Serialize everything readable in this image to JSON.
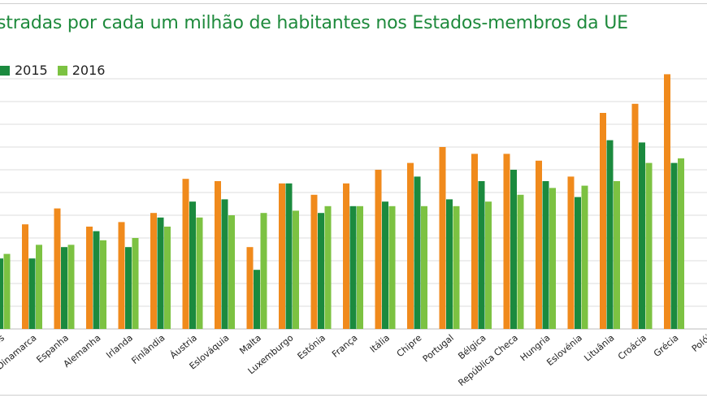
{
  "title": "stradas por cada um milhão de habitantes nos Estados-membros da UE",
  "colors": {
    "2014": "#f08a1c",
    "2015": "#1b8a3e",
    "2016": "#7cc242",
    "title": "#1e8a3c"
  },
  "legend": [
    {
      "label": "2015",
      "color": "#1b8a3e"
    },
    {
      "label": "2016",
      "color": "#7cc242"
    }
  ],
  "chart_data": {
    "type": "bar",
    "title": "stradas por cada um milhão de habitantes nos Estados-membros da UE",
    "xlabel": "",
    "ylabel": "",
    "ylim": [
      0,
      110
    ],
    "grid": true,
    "legend_position": "top-left",
    "categories": [
      "Países Baixos",
      "Dinamarca",
      "Espanha",
      "Alemanha",
      "Irlanda",
      "Finlândia",
      "Áustria",
      "Eslováquia",
      "Malta",
      "Luxemburgo",
      "Estónia",
      "França",
      "Itália",
      "Chipre",
      "Portugal",
      "Bélgica",
      "República Checa",
      "Hungria",
      "Eslovénia",
      "Lituânia",
      "Croácia",
      "Grécia",
      "Polónia"
    ],
    "tick_labels": [
      "xos",
      "Dinamarca",
      "Espanha",
      "Alemanha",
      "Irlanda",
      "Finlândia",
      "Áustria",
      "Eslováquia",
      "Malta",
      "Luxemburgo",
      "Estónia",
      "França",
      "Itália",
      "Chipre",
      "Portugal",
      "Bélgica",
      "República Checa",
      "Hungria",
      "Eslovénia",
      "Lituânia",
      "Croácia",
      "Grécia",
      "Polói"
    ],
    "series": [
      {
        "name": "",
        "values": [
          32,
          46,
          53,
          45,
          47,
          51,
          66,
          65,
          36,
          64,
          59,
          64,
          70,
          73,
          80,
          77,
          77,
          74,
          67,
          95,
          99,
          112,
          null
        ]
      },
      {
        "name": "2015",
        "values": [
          31,
          31,
          36,
          43,
          36,
          49,
          56,
          57,
          26,
          64,
          51,
          54,
          56,
          67,
          57,
          65,
          70,
          65,
          58,
          83,
          82,
          73,
          null
        ]
      },
      {
        "name": "2016",
        "values": [
          33,
          37,
          37,
          39,
          40,
          45,
          49,
          50,
          51,
          52,
          54,
          54,
          54,
          54,
          54,
          56,
          59,
          62,
          63,
          65,
          73,
          75,
          null
        ]
      }
    ]
  }
}
